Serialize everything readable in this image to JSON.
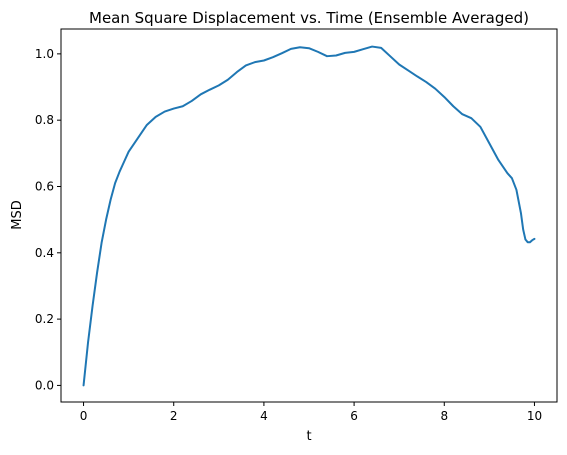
{
  "chart_data": {
    "type": "line",
    "title": "Mean Square Displacement vs. Time (Ensemble Averaged)",
    "xlabel": "t",
    "ylabel": "MSD",
    "xlim": [
      -0.5,
      10.5
    ],
    "ylim": [
      -0.05,
      1.075
    ],
    "xticks": [
      0,
      2,
      4,
      6,
      8,
      10
    ],
    "xtick_labels": [
      "0",
      "2",
      "4",
      "6",
      "8",
      "10"
    ],
    "yticks": [
      0.0,
      0.2,
      0.4,
      0.6,
      0.8,
      1.0
    ],
    "ytick_labels": [
      "0.0",
      "0.2",
      "0.4",
      "0.6",
      "0.8",
      "1.0"
    ],
    "grid": false,
    "line_color": "#1f77b4",
    "series": [
      {
        "x": [
          0,
          0.1,
          0.2,
          0.3,
          0.4,
          0.5,
          0.6,
          0.7,
          0.8,
          0.9,
          1.0,
          1.1,
          1.2,
          1.4,
          1.6,
          1.8,
          2.0,
          2.2,
          2.4,
          2.6,
          2.8,
          3.0,
          3.2,
          3.4,
          3.6,
          3.8,
          4.0,
          4.2,
          4.4,
          4.6,
          4.8,
          5.0,
          5.2,
          5.4,
          5.6,
          5.8,
          6.0,
          6.2,
          6.4,
          6.6,
          6.8,
          7.0,
          7.2,
          7.4,
          7.6,
          7.8,
          8.0,
          8.2,
          8.4,
          8.6,
          8.8,
          9.0,
          9.2,
          9.4,
          9.5,
          9.6,
          9.7,
          9.75,
          9.8,
          9.85,
          9.9,
          9.95,
          10.0
        ],
        "y": [
          0.0,
          0.13,
          0.24,
          0.34,
          0.43,
          0.5,
          0.56,
          0.61,
          0.645,
          0.675,
          0.705,
          0.725,
          0.745,
          0.785,
          0.81,
          0.826,
          0.835,
          0.842,
          0.858,
          0.878,
          0.892,
          0.905,
          0.922,
          0.945,
          0.965,
          0.975,
          0.98,
          0.99,
          1.002,
          1.015,
          1.02,
          1.017,
          1.006,
          0.993,
          0.995,
          1.003,
          1.006,
          1.014,
          1.022,
          1.018,
          0.993,
          0.968,
          0.95,
          0.932,
          0.915,
          0.895,
          0.87,
          0.842,
          0.818,
          0.806,
          0.78,
          0.73,
          0.68,
          0.64,
          0.625,
          0.59,
          0.52,
          0.47,
          0.44,
          0.432,
          0.432,
          0.438,
          0.442
        ]
      }
    ]
  }
}
